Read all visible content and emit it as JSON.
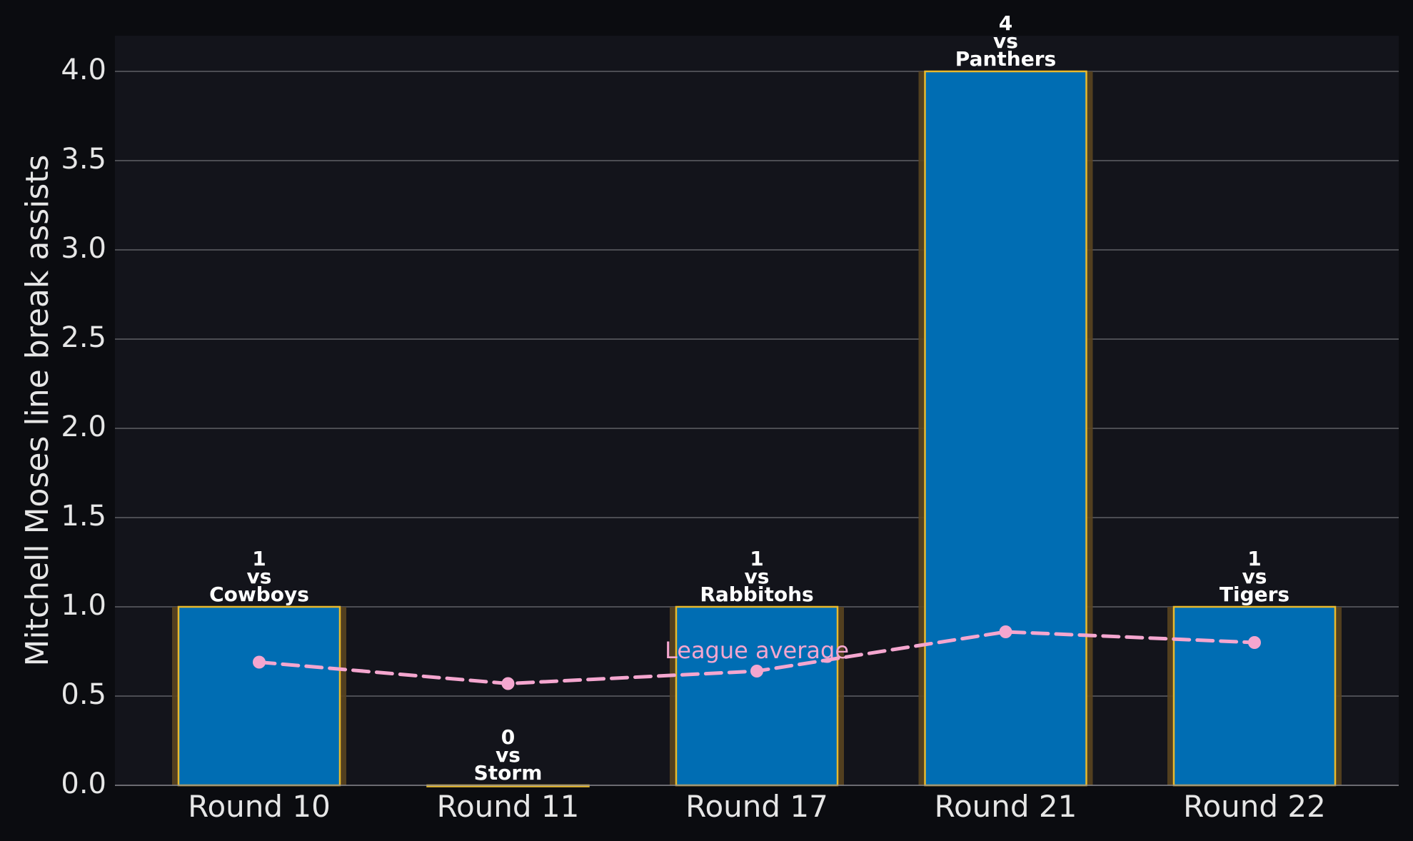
{
  "chart_data": {
    "type": "bar",
    "categories": [
      "Round 10",
      "Round 11",
      "Round 17",
      "Round 21",
      "Round 22"
    ],
    "series": [
      {
        "values": [
          1,
          0,
          1,
          4,
          1
        ],
        "opponents": [
          "Cowboys",
          "Storm",
          "Rabbitohs",
          "Panthers",
          "Tigers"
        ]
      },
      {
        "name": "League average",
        "type": "line",
        "values": [
          0.69,
          0.57,
          0.64,
          0.86,
          0.8
        ]
      }
    ],
    "bar_label_vs": "vs",
    "ylabel": "Mitchell Moses line break assists",
    "xlabel": "",
    "title": "",
    "ylim": [
      0,
      4.2
    ],
    "yticks": [
      "0.0",
      "0.5",
      "1.0",
      "1.5",
      "2.0",
      "2.5",
      "3.0",
      "3.5",
      "4.0"
    ],
    "ytick_values": [
      0,
      0.5,
      1.0,
      1.5,
      2.0,
      2.5,
      3.0,
      3.5,
      4.0
    ],
    "grid": "horizontal",
    "legend": "none",
    "colors": {
      "figure_bg": "#0b0c10",
      "plot_bg": "#13141b",
      "bar_fill": "#006db3",
      "bar_edge": "#e8b92d",
      "bar_glow": "#5a4420",
      "line": "#f4a6cf",
      "grid": "#5f6066",
      "text": "#e6e6e6",
      "label_text": "#ffffff"
    }
  }
}
